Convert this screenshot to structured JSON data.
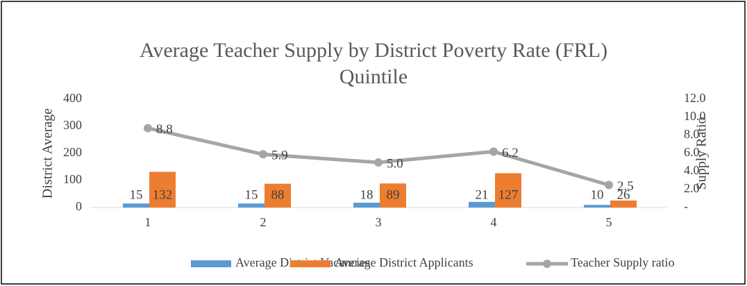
{
  "chart_data": {
    "type": "bar",
    "title": "Average Teacher Supply by District Poverty Rate (FRL) Quintile",
    "y_label": "District Average",
    "y2_label": "Supply Ratio",
    "categories": [
      "1",
      "2",
      "3",
      "4",
      "5"
    ],
    "series": [
      {
        "name": "Average District Vacancies",
        "color": "#5b9bd5",
        "values": [
          15,
          15,
          18,
          21,
          10
        ]
      },
      {
        "name": "Average District Applicants",
        "color": "#ed7d31",
        "values": [
          132,
          88,
          89,
          127,
          26
        ]
      },
      {
        "name": "Teacher Supply ratio",
        "color": "#a5a5a5",
        "type": "line",
        "axis": "y2",
        "values": [
          8.8,
          5.9,
          5.0,
          6.2,
          2.5
        ],
        "value_labels": [
          "8.8",
          "5.9",
          "5.0",
          "6.2",
          "2.5"
        ]
      }
    ],
    "ylim": [
      0,
      400
    ],
    "yticks": [
      0,
      100,
      200,
      300,
      400
    ],
    "y2lim": [
      0,
      12
    ],
    "y2ticks": [
      {
        "value": 0,
        "label": "-"
      },
      {
        "value": 2,
        "label": "2.0"
      },
      {
        "value": 4,
        "label": "4.0"
      },
      {
        "value": 6,
        "label": "6.0"
      },
      {
        "value": 8,
        "label": "8.0"
      },
      {
        "value": 10,
        "label": "10.0"
      },
      {
        "value": 12,
        "label": "12.0"
      }
    ],
    "legend": "bottom",
    "grid": false
  }
}
